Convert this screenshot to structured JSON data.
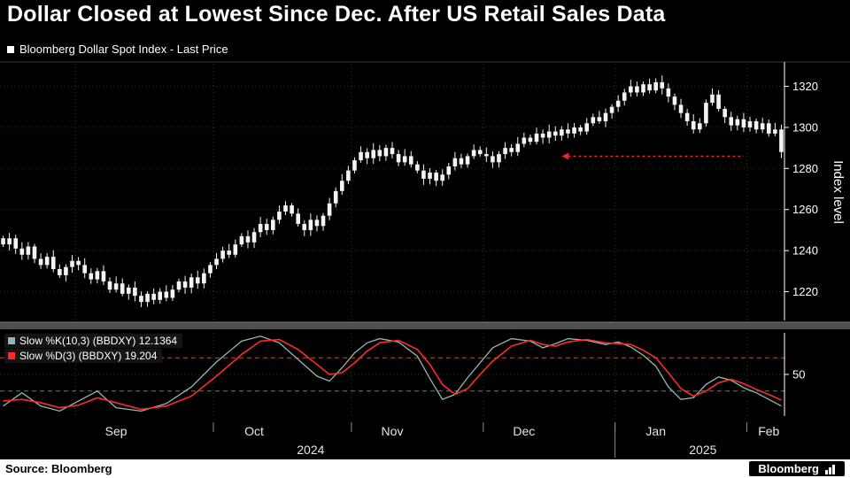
{
  "title": "Dollar Closed at Lowest Since Dec. After US Retail Sales Data",
  "main_legend": {
    "marker_color": "#ffffff",
    "label": "Bloomberg Dollar Spot Index - Last Price"
  },
  "footer": {
    "source": "Source: Bloomberg",
    "brand": "Bloomberg"
  },
  "colors": {
    "background": "#000000",
    "grid": "#313131",
    "axis": "#ffffff",
    "candle": "#f4f4f4",
    "separator": "#4f4f4f",
    "upper_band": "#b25a28",
    "lower_band": "#2f9e4f"
  },
  "chart_data": {
    "type": "candlestick",
    "title": "Dollar Closed at Lowest Since Dec. After US Retail Sales Data",
    "series_label": "Bloomberg Dollar Spot Index - Last Price",
    "ylabel": "Index level",
    "yticks": [
      1220,
      1240,
      1260,
      1280,
      1300,
      1320
    ],
    "ylim": [
      1206,
      1331
    ],
    "n": 125,
    "x_months": [
      {
        "label": "Sep",
        "start": 12
      },
      {
        "label": "Oct",
        "start": 34
      },
      {
        "label": "Nov",
        "start": 56
      },
      {
        "label": "Dec",
        "start": 77
      },
      {
        "label": "Jan",
        "start": 98
      },
      {
        "label": "Feb",
        "start": 119
      }
    ],
    "years": [
      {
        "label": "2024",
        "start": 0,
        "end": 98
      },
      {
        "label": "2025",
        "start": 98,
        "end": 125
      }
    ],
    "closes": [
      1243,
      1246,
      1241,
      1238,
      1242,
      1236,
      1233,
      1237,
      1231,
      1228,
      1232,
      1235,
      1233,
      1229,
      1226,
      1230,
      1225,
      1221,
      1224,
      1219,
      1222,
      1218,
      1215,
      1219,
      1216,
      1220,
      1217,
      1221,
      1225,
      1222,
      1227,
      1224,
      1229,
      1233,
      1236,
      1240,
      1238,
      1243,
      1247,
      1244,
      1249,
      1253,
      1250,
      1255,
      1259,
      1262,
      1258,
      1253,
      1250,
      1255,
      1252,
      1257,
      1263,
      1269,
      1274,
      1279,
      1284,
      1288,
      1285,
      1289,
      1286,
      1290,
      1287,
      1283,
      1286,
      1282,
      1279,
      1275,
      1278,
      1274,
      1277,
      1281,
      1285,
      1282,
      1286,
      1289,
      1287,
      1286,
      1283,
      1287,
      1290,
      1288,
      1292,
      1295,
      1293,
      1297,
      1295,
      1298,
      1296,
      1299,
      1297,
      1300,
      1298,
      1302,
      1305,
      1303,
      1307,
      1310,
      1313,
      1317,
      1320,
      1317,
      1321,
      1318,
      1322,
      1319,
      1315,
      1311,
      1307,
      1303,
      1299,
      1302,
      1312,
      1316,
      1309,
      1305,
      1301,
      1304,
      1300,
      1303,
      1299,
      1302,
      1297,
      1299,
      1288
    ],
    "annotation_arrow": {
      "value": 1286,
      "from_index": 118,
      "to_index": 89,
      "color": "#ff2222"
    },
    "stochastic": {
      "k_label": "Slow %K(10,3) (BBDXY) 12.1364",
      "d_label": "Slow %D(3) (BBDXY) 19.204",
      "k_last": 12.1364,
      "d_last": 19.204,
      "k_color": "#8fb8b4",
      "d_color": "#ff2b2b",
      "ylim": [
        0,
        100
      ],
      "mid": 50,
      "mid_tick_label": "50",
      "upper_band": 70,
      "lower_band": 30,
      "k_points": [
        [
          0,
          12
        ],
        [
          3,
          28
        ],
        [
          6,
          12
        ],
        [
          9,
          6
        ],
        [
          12,
          18
        ],
        [
          15,
          30
        ],
        [
          18,
          10
        ],
        [
          22,
          6
        ],
        [
          26,
          15
        ],
        [
          30,
          35
        ],
        [
          34,
          65
        ],
        [
          38,
          90
        ],
        [
          41,
          96
        ],
        [
          44,
          88
        ],
        [
          47,
          68
        ],
        [
          50,
          48
        ],
        [
          52,
          42
        ],
        [
          54,
          58
        ],
        [
          56,
          76
        ],
        [
          58,
          88
        ],
        [
          60,
          93
        ],
        [
          63,
          89
        ],
        [
          66,
          72
        ],
        [
          68,
          45
        ],
        [
          70,
          20
        ],
        [
          72,
          26
        ],
        [
          74,
          46
        ],
        [
          76,
          64
        ],
        [
          78,
          82
        ],
        [
          81,
          93
        ],
        [
          84,
          90
        ],
        [
          86,
          82
        ],
        [
          88,
          87
        ],
        [
          90,
          93
        ],
        [
          93,
          91
        ],
        [
          96,
          86
        ],
        [
          98,
          89
        ],
        [
          100,
          83
        ],
        [
          102,
          73
        ],
        [
          104,
          60
        ],
        [
          106,
          35
        ],
        [
          108,
          20
        ],
        [
          110,
          22
        ],
        [
          112,
          38
        ],
        [
          114,
          47
        ],
        [
          116,
          43
        ],
        [
          118,
          34
        ],
        [
          120,
          28
        ],
        [
          122,
          20
        ],
        [
          124,
          12
        ]
      ],
      "d_points": [
        [
          0,
          18
        ],
        [
          3,
          20
        ],
        [
          6,
          16
        ],
        [
          9,
          10
        ],
        [
          12,
          13
        ],
        [
          15,
          22
        ],
        [
          18,
          16
        ],
        [
          22,
          8
        ],
        [
          26,
          12
        ],
        [
          30,
          24
        ],
        [
          34,
          48
        ],
        [
          38,
          74
        ],
        [
          41,
          90
        ],
        [
          44,
          92
        ],
        [
          47,
          80
        ],
        [
          50,
          62
        ],
        [
          52,
          50
        ],
        [
          54,
          52
        ],
        [
          56,
          64
        ],
        [
          58,
          78
        ],
        [
          60,
          88
        ],
        [
          63,
          91
        ],
        [
          66,
          80
        ],
        [
          68,
          62
        ],
        [
          70,
          38
        ],
        [
          72,
          26
        ],
        [
          74,
          33
        ],
        [
          76,
          50
        ],
        [
          78,
          66
        ],
        [
          81,
          84
        ],
        [
          84,
          91
        ],
        [
          86,
          86
        ],
        [
          88,
          84
        ],
        [
          90,
          89
        ],
        [
          93,
          92
        ],
        [
          96,
          88
        ],
        [
          98,
          87
        ],
        [
          100,
          86
        ],
        [
          102,
          79
        ],
        [
          104,
          70
        ],
        [
          106,
          52
        ],
        [
          108,
          33
        ],
        [
          110,
          24
        ],
        [
          112,
          30
        ],
        [
          114,
          40
        ],
        [
          116,
          44
        ],
        [
          118,
          39
        ],
        [
          120,
          32
        ],
        [
          122,
          26
        ],
        [
          124,
          19
        ]
      ]
    }
  }
}
